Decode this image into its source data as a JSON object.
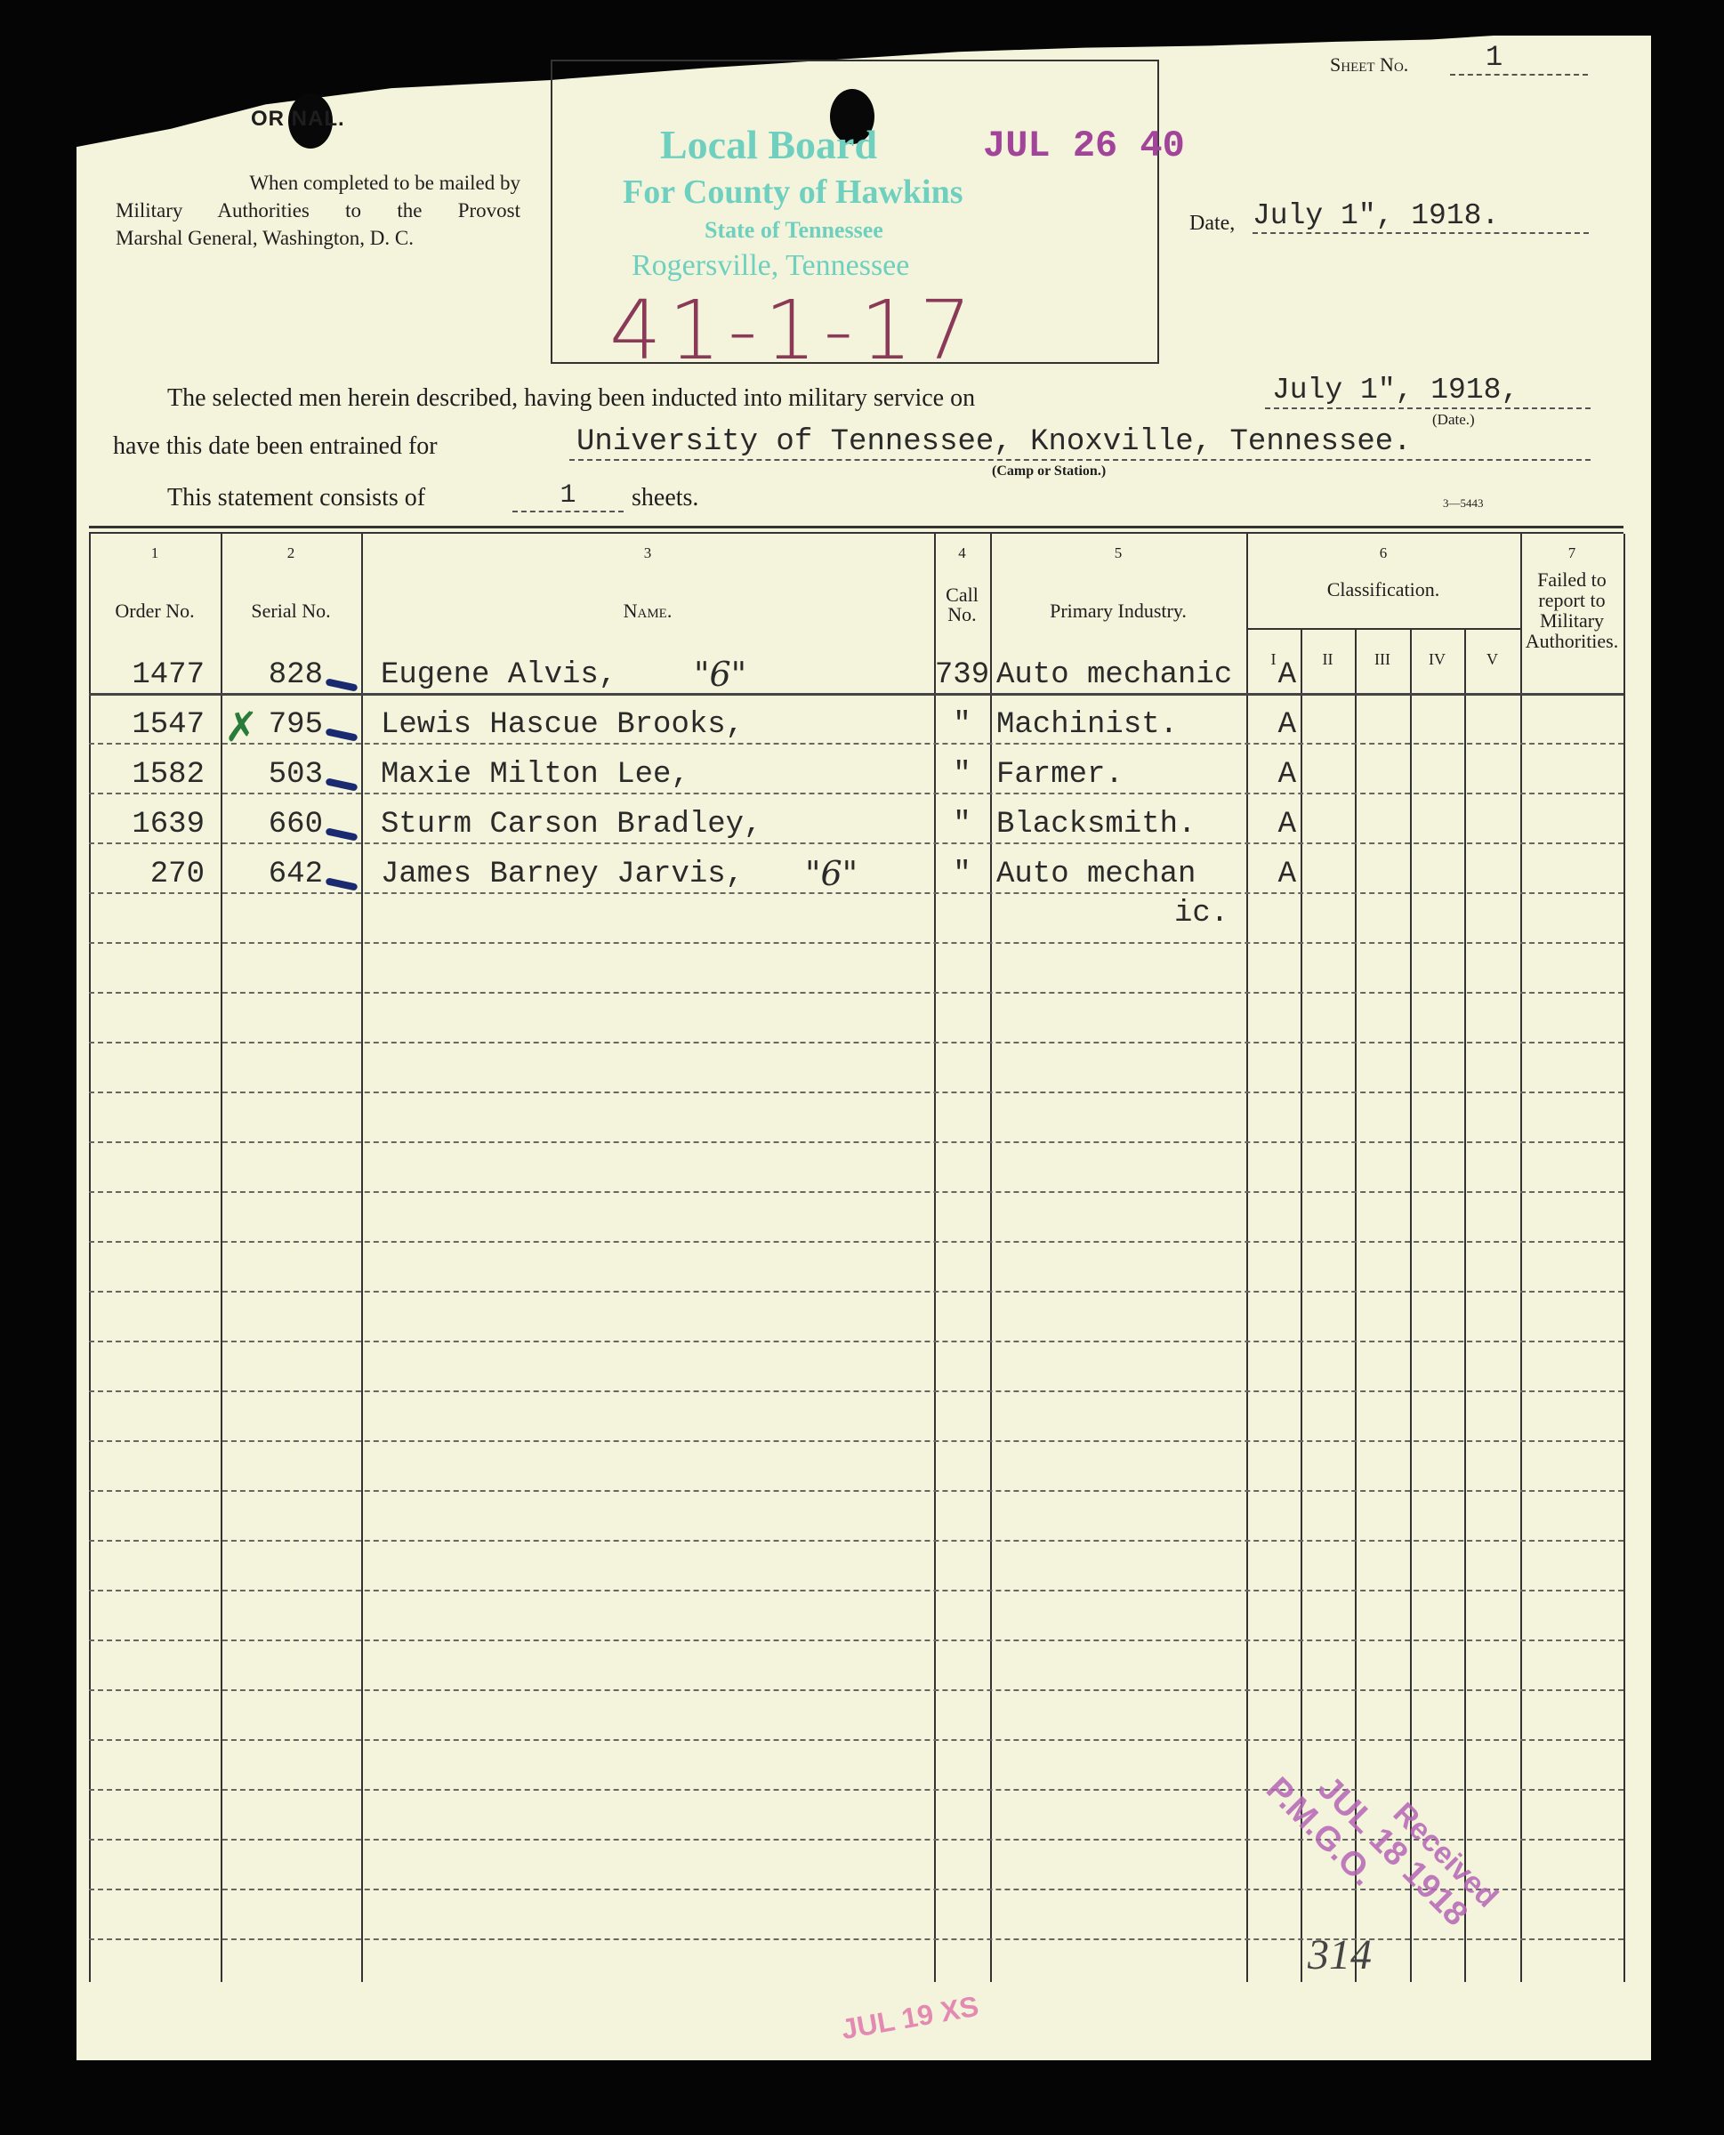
{
  "header": {
    "original_label": "OR  NAL.",
    "mailing_note": [
      "When completed to be mailed by",
      "Military Authorities to the Provost",
      "Marshal General, Washington, D. C."
    ],
    "sheet_label": "Sheet No.",
    "sheet_no": "1",
    "date_label": "Date,",
    "date_value": "July 1\", 1918."
  },
  "board_stamp": {
    "line1": "Local Board",
    "line2": "For County of Hawkins",
    "line3": "State of Tennessee",
    "line4": "Rogersville, Tennessee",
    "date_stamp": "JUL 26 40",
    "handwritten": "41-1-17"
  },
  "statement": {
    "line1_prefix": "The selected men herein described, having been inducted into military service on",
    "induction_date": "July 1\", 1918,",
    "date_caption": "(Date.)",
    "line2_prefix": "have this date been entrained for",
    "destination": "University of Tennessee, Knoxville, Tennessee.",
    "destination_caption": "(Camp or Station.)",
    "line3_prefix": "This statement consists of",
    "sheet_count": "1",
    "line3_suffix": "sheets.",
    "form_number": "3—5443"
  },
  "table": {
    "column_numbers": [
      "1",
      "2",
      "3",
      "4",
      "5",
      "6",
      "7"
    ],
    "headers": {
      "order": "Order No.",
      "serial": "Serial No.",
      "name": "Name.",
      "call": "Call No.",
      "industry": "Primary Industry.",
      "classification": "Classification.",
      "class_subcols": [
        "I",
        "II",
        "III",
        "IV",
        "V"
      ],
      "failed": "Failed to report to Military Authorities."
    },
    "rows": [
      {
        "order": "1477",
        "serial": "828",
        "name": "Eugene Alvis,",
        "mark": "\"6\"",
        "call": "739",
        "industry": "Auto mechanic",
        "class": "A"
      },
      {
        "order": "1547",
        "serial": "795",
        "name": "Lewis Hascue Brooks,",
        "mark": "",
        "call": "\"",
        "industry": "Machinist.",
        "class": "A"
      },
      {
        "order": "1582",
        "serial": "503",
        "name": "Maxie Milton Lee,",
        "mark": "",
        "call": "\"",
        "industry": "Farmer.",
        "class": "A"
      },
      {
        "order": "1639",
        "serial": "660",
        "name": "Sturm Carson Bradley,",
        "mark": "",
        "call": "\"",
        "industry": "Blacksmith.",
        "class": "A"
      },
      {
        "order": "270",
        "serial": "642",
        "name": "James Barney Jarvis,",
        "mark": "\"6\"",
        "call": "\"",
        "industry": "Auto mechan",
        "industry_overflow": "ic.",
        "class": "A"
      }
    ]
  },
  "received_stamp": {
    "line1": "Received",
    "line2": "JUL 18 1918",
    "line3": "P.M.G.O."
  },
  "handwritten_number": "314",
  "bottom_stamp": "JUL 19 XS",
  "colors": {
    "paper": "#f4f4dc",
    "teal_stamp": "#6fd0c0",
    "purple_stamp": "#a2449a",
    "ink_blue": "#1a2a70",
    "ink_green": "#2a7a3a"
  }
}
